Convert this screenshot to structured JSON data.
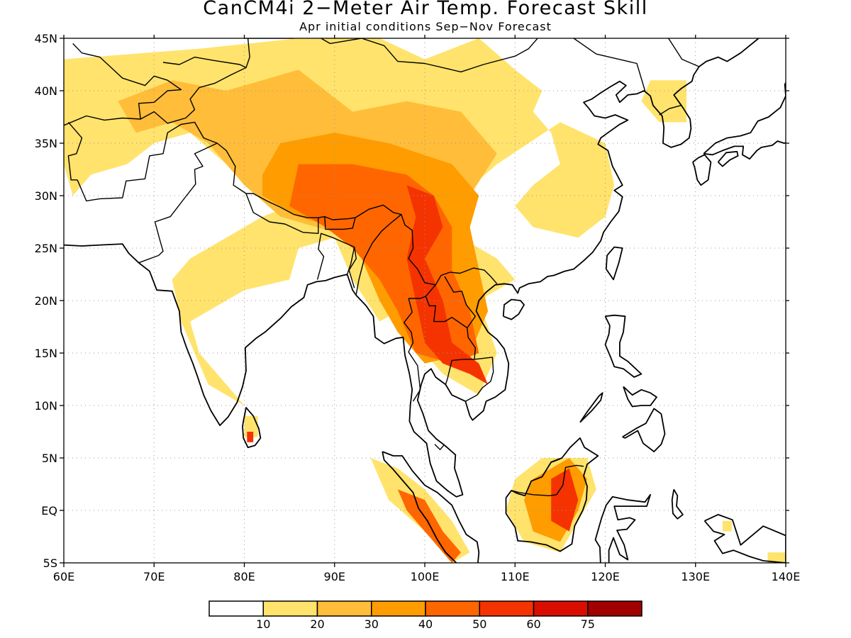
{
  "title": "CanCM4i 2−Meter Air Temp. Forecast Skill",
  "subtitle": "Apr initial conditions   Sep−Nov Forecast",
  "map": {
    "lon_range": [
      60,
      140
    ],
    "lat_range": [
      -5,
      45
    ],
    "lon_ticks": [
      {
        "value": 60,
        "label": "60E"
      },
      {
        "value": 70,
        "label": "70E"
      },
      {
        "value": 80,
        "label": "80E"
      },
      {
        "value": 90,
        "label": "90E"
      },
      {
        "value": 100,
        "label": "100E"
      },
      {
        "value": 110,
        "label": "110E"
      },
      {
        "value": 120,
        "label": "120E"
      },
      {
        "value": 130,
        "label": "130E"
      },
      {
        "value": 140,
        "label": "140E"
      }
    ],
    "lat_ticks": [
      {
        "value": 45,
        "label": "45N"
      },
      {
        "value": 40,
        "label": "40N"
      },
      {
        "value": 35,
        "label": "35N"
      },
      {
        "value": 30,
        "label": "30N"
      },
      {
        "value": 25,
        "label": "25N"
      },
      {
        "value": 20,
        "label": "20N"
      },
      {
        "value": 15,
        "label": "15N"
      },
      {
        "value": 10,
        "label": "10N"
      },
      {
        "value": 5,
        "label": "5N"
      },
      {
        "value": 0,
        "label": "EQ"
      },
      {
        "value": -5,
        "label": "5S"
      }
    ],
    "gridlines": "dotted",
    "skill_regions": [
      {
        "level": 1,
        "lonlat": [
          [
            60,
            43
          ],
          [
            75,
            44
          ],
          [
            86,
            45
          ],
          [
            95,
            45
          ],
          [
            100,
            43
          ],
          [
            106,
            45
          ],
          [
            110,
            42
          ],
          [
            113,
            40
          ],
          [
            112,
            38
          ],
          [
            114,
            36
          ],
          [
            115,
            33
          ],
          [
            112,
            31
          ],
          [
            110,
            29
          ],
          [
            112,
            27
          ],
          [
            117,
            26
          ],
          [
            120,
            28
          ],
          [
            121,
            31
          ],
          [
            120,
            35
          ],
          [
            115,
            37
          ],
          [
            108,
            33
          ],
          [
            104,
            30
          ],
          [
            104,
            26
          ],
          [
            108,
            24
          ],
          [
            110,
            22
          ],
          [
            106,
            20
          ],
          [
            108,
            15
          ],
          [
            106,
            11
          ],
          [
            102,
            13
          ],
          [
            99,
            16
          ],
          [
            97,
            19
          ],
          [
            95,
            18
          ],
          [
            92,
            22
          ],
          [
            90,
            26
          ],
          [
            86,
            25
          ],
          [
            85,
            22
          ],
          [
            80,
            21
          ],
          [
            76,
            19
          ],
          [
            74,
            18
          ],
          [
            75,
            15
          ],
          [
            78,
            12
          ],
          [
            80,
            10
          ],
          [
            76,
            12
          ],
          [
            73,
            18
          ],
          [
            72,
            22
          ],
          [
            74,
            24
          ],
          [
            78,
            26
          ],
          [
            82,
            28
          ],
          [
            85,
            29
          ],
          [
            82,
            30
          ],
          [
            78,
            33
          ],
          [
            74,
            36
          ],
          [
            70,
            35
          ],
          [
            67,
            33
          ],
          [
            63,
            32
          ],
          [
            61,
            30
          ],
          [
            60,
            33
          ]
        ]
      },
      {
        "level": 2,
        "lonlat": [
          [
            72,
            41
          ],
          [
            78,
            40
          ],
          [
            86,
            42
          ],
          [
            92,
            38
          ],
          [
            98,
            39
          ],
          [
            104,
            38
          ],
          [
            108,
            34
          ],
          [
            105,
            30
          ],
          [
            103,
            26
          ],
          [
            106,
            22
          ],
          [
            104,
            18
          ],
          [
            100,
            17
          ],
          [
            97,
            20
          ],
          [
            94,
            22
          ],
          [
            92,
            26
          ],
          [
            88,
            27
          ],
          [
            84,
            28
          ],
          [
            80,
            31
          ],
          [
            76,
            35
          ],
          [
            72,
            37
          ],
          [
            68,
            36
          ],
          [
            66,
            39
          ]
        ]
      },
      {
        "level": 3,
        "lonlat": [
          [
            84,
            35
          ],
          [
            90,
            36
          ],
          [
            96,
            35
          ],
          [
            103,
            33
          ],
          [
            106,
            30
          ],
          [
            105,
            27
          ],
          [
            106,
            23
          ],
          [
            107,
            19
          ],
          [
            105,
            15
          ],
          [
            100,
            14
          ],
          [
            97,
            17
          ],
          [
            95,
            20
          ],
          [
            93,
            24
          ],
          [
            90,
            27
          ],
          [
            86,
            28
          ],
          [
            82,
            30
          ],
          [
            82,
            32
          ]
        ]
      },
      {
        "level": 4,
        "lonlat": [
          [
            86,
            33
          ],
          [
            92,
            33
          ],
          [
            98,
            32
          ],
          [
            101,
            30
          ],
          [
            103,
            27
          ],
          [
            103,
            23
          ],
          [
            105,
            19
          ],
          [
            106,
            15
          ],
          [
            103,
            14
          ],
          [
            99,
            15
          ],
          [
            97,
            19
          ],
          [
            95,
            22
          ],
          [
            92,
            25
          ],
          [
            89,
            27
          ],
          [
            85,
            29
          ]
        ]
      },
      {
        "level": 5,
        "lonlat": [
          [
            98,
            31
          ],
          [
            101,
            30
          ],
          [
            102,
            27
          ],
          [
            100,
            24
          ],
          [
            102,
            20
          ],
          [
            103,
            16
          ],
          [
            106,
            14
          ],
          [
            107,
            12
          ],
          [
            105,
            13
          ],
          [
            102,
            14
          ],
          [
            100,
            16
          ],
          [
            99,
            20
          ],
          [
            98,
            24
          ],
          [
            99,
            28
          ]
        ]
      },
      {
        "level": 1,
        "lonlat": [
          [
            110,
            3
          ],
          [
            113,
            5
          ],
          [
            118,
            5
          ],
          [
            119,
            2
          ],
          [
            117,
            -1
          ],
          [
            115,
            -4
          ],
          [
            111,
            -3
          ],
          [
            109,
            0
          ]
        ]
      },
      {
        "level": 3,
        "lonlat": [
          [
            112,
            3
          ],
          [
            116,
            5
          ],
          [
            118,
            3
          ],
          [
            117,
            0
          ],
          [
            115,
            -3
          ],
          [
            112,
            -2
          ],
          [
            111,
            1
          ]
        ]
      },
      {
        "level": 5,
        "lonlat": [
          [
            114,
            3
          ],
          [
            116,
            4
          ],
          [
            117,
            1
          ],
          [
            116,
            -2
          ],
          [
            114,
            -1
          ]
        ]
      },
      {
        "level": 1,
        "lonlat": [
          [
            94,
            5
          ],
          [
            97,
            4
          ],
          [
            100,
            2
          ],
          [
            103,
            -1
          ],
          [
            105,
            -4
          ],
          [
            103,
            -5
          ],
          [
            100,
            -2
          ],
          [
            96,
            1
          ]
        ]
      },
      {
        "level": 4,
        "lonlat": [
          [
            97,
            2
          ],
          [
            100,
            1
          ],
          [
            102,
            -2
          ],
          [
            104,
            -4
          ],
          [
            103,
            -5
          ],
          [
            100,
            -2
          ],
          [
            98,
            0
          ]
        ]
      },
      {
        "level": 1,
        "lonlat": [
          [
            125,
            41
          ],
          [
            129,
            41
          ],
          [
            129,
            37
          ],
          [
            126,
            37
          ],
          [
            124,
            39
          ]
        ]
      },
      {
        "level": 1,
        "lonlat": [
          [
            138,
            -4
          ],
          [
            140,
            -4
          ],
          [
            140,
            -5
          ],
          [
            138,
            -5
          ]
        ]
      },
      {
        "level": 1,
        "lonlat": [
          [
            80,
            9
          ],
          [
            81.5,
            9
          ],
          [
            81.5,
            7
          ],
          [
            80,
            7
          ]
        ]
      },
      {
        "level": 5,
        "lonlat": [
          [
            80.3,
            7.5
          ],
          [
            81,
            7.5
          ],
          [
            81,
            6.5
          ],
          [
            80.3,
            6.5
          ]
        ]
      },
      {
        "level": 1,
        "lonlat": [
          [
            133,
            -1
          ],
          [
            134,
            -1
          ],
          [
            134,
            -2
          ],
          [
            133,
            -2
          ]
        ]
      }
    ]
  },
  "colorbar": {
    "colors": [
      "#ffffff",
      "#ffe36c",
      "#ffbd39",
      "#ff9c00",
      "#ff6600",
      "#f53300",
      "#d90e00",
      "#a00000"
    ],
    "labels": [
      "10",
      "20",
      "30",
      "40",
      "50",
      "60",
      "75"
    ]
  }
}
